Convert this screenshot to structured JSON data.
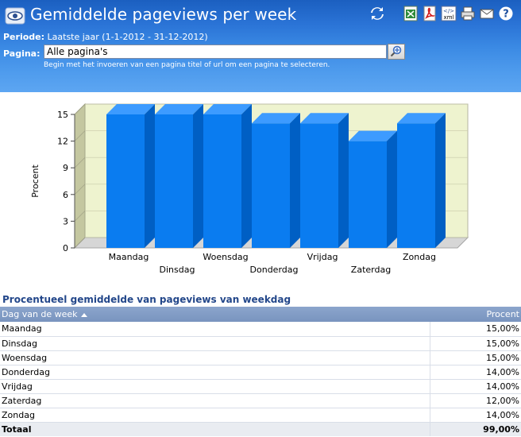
{
  "header": {
    "title": "Gemiddelde pageviews per week",
    "periode_label": "Periode:",
    "periode_value": "Laatste jaar (1-1-2012 - 31-12-2012)",
    "pagina_label": "Pagina:",
    "pagina_value": "Alle pagina's",
    "hint": "Begin met het invoeren van een pagina titel of url om een pagina te selecteren."
  },
  "toolbar": {
    "icons": [
      "refresh-icon",
      "excel-export-icon",
      "pdf-export-icon",
      "xml-export-icon",
      "print-icon",
      "email-icon",
      "help-icon"
    ],
    "xml_label": "xml"
  },
  "chart_data": {
    "type": "bar",
    "categories": [
      "Maandag",
      "Dinsdag",
      "Woensdag",
      "Donderdag",
      "Vrijdag",
      "Zaterdag",
      "Zondag"
    ],
    "values": [
      15,
      15,
      15,
      14,
      14,
      12,
      14
    ],
    "ylabel": "Procent",
    "ylim": [
      0,
      15
    ],
    "yticks": [
      "0",
      "3",
      "6",
      "9",
      "12",
      "15"
    ],
    "bar_color": "#0a7cf0",
    "plot_background": "#eef3cf",
    "three_d": true
  },
  "table": {
    "section_title": "Procentueel gemiddelde van pageviews van weekdag",
    "columns": [
      "Dag van de week",
      "Procent"
    ],
    "sort_column": "Dag van de week",
    "sort_direction": "ascending",
    "rows": [
      {
        "day": "Maandag",
        "pct": "15,00%"
      },
      {
        "day": "Dinsdag",
        "pct": "15,00%"
      },
      {
        "day": "Woensdag",
        "pct": "15,00%"
      },
      {
        "day": "Donderdag",
        "pct": "14,00%"
      },
      {
        "day": "Vrijdag",
        "pct": "14,00%"
      },
      {
        "day": "Zaterdag",
        "pct": "12,00%"
      },
      {
        "day": "Zondag",
        "pct": "14,00%"
      }
    ],
    "total_label": "Totaal",
    "total_value": "99,00%"
  }
}
